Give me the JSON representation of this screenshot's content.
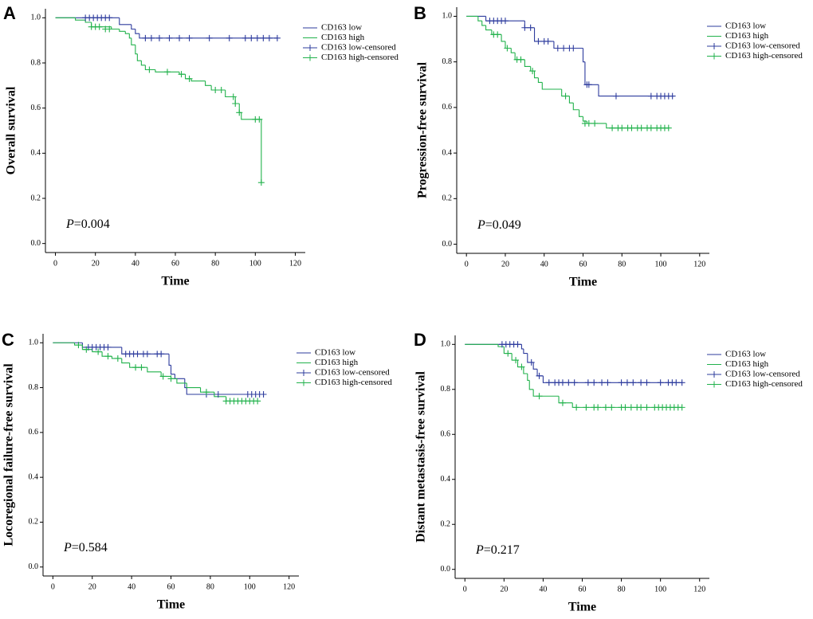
{
  "chart_data": [
    {
      "type": "step",
      "panel_label": "A",
      "ylabel": "Overall survival",
      "xlabel": "Time",
      "annotation_italic": "P",
      "annotation": "=0.004",
      "xlim": [
        -5,
        125
      ],
      "ylim": [
        -0.04,
        1.04
      ],
      "xticks": [
        0,
        20,
        40,
        60,
        80,
        100,
        120
      ],
      "yticks": [
        {
          "value": 0,
          "label": "0.0"
        },
        0.2,
        0.4,
        0.6,
        0.8,
        {
          "value": 1,
          "label": "1.0"
        }
      ],
      "series": [
        {
          "name": "CD163 low",
          "color": "#2e3c9e",
          "x": [
            0,
            32,
            38,
            40,
            42,
            111
          ],
          "values": [
            1,
            0.97,
            0.95,
            0.93,
            0.91,
            0.91
          ]
        },
        {
          "name": "CD163 high",
          "color": "#22b24c",
          "x": [
            0,
            10,
            15,
            18,
            28,
            32,
            35,
            37,
            38,
            40,
            41,
            43,
            45,
            50,
            62,
            65,
            68,
            75,
            78,
            85,
            90,
            92,
            93,
            103
          ],
          "values": [
            1,
            0.99,
            0.98,
            0.96,
            0.95,
            0.94,
            0.93,
            0.91,
            0.88,
            0.84,
            0.81,
            0.79,
            0.77,
            0.76,
            0.75,
            0.73,
            0.72,
            0.7,
            0.68,
            0.65,
            0.62,
            0.58,
            0.55,
            0.27
          ]
        },
        {
          "name": "CD163 low-censored",
          "color": "#2e3c9e",
          "marker": "+",
          "x": [
            15,
            17,
            19,
            21,
            23,
            25,
            27,
            45,
            48,
            52,
            57,
            62,
            67,
            77,
            87,
            95,
            98,
            101,
            104,
            107,
            111
          ],
          "values": [
            1,
            1,
            1,
            1,
            1,
            1,
            1,
            0.91,
            0.91,
            0.91,
            0.91,
            0.91,
            0.91,
            0.91,
            0.91,
            0.91,
            0.91,
            0.91,
            0.91,
            0.91,
            0.91
          ]
        },
        {
          "name": "CD163 high-censored",
          "color": "#22b24c",
          "marker": "+",
          "x": [
            18,
            20,
            22,
            25,
            27,
            47,
            56,
            63,
            67,
            80,
            83,
            89,
            90,
            92,
            100,
            102,
            103
          ],
          "values": [
            0.96,
            0.96,
            0.96,
            0.95,
            0.95,
            0.77,
            0.76,
            0.75,
            0.73,
            0.68,
            0.68,
            0.65,
            0.62,
            0.58,
            0.55,
            0.55,
            0.27
          ]
        }
      ]
    },
    {
      "type": "step",
      "panel_label": "B",
      "ylabel": "Progression-free survival",
      "xlabel": "Time",
      "annotation_italic": "P",
      "annotation": "=0.049",
      "xlim": [
        -5,
        125
      ],
      "ylim": [
        -0.04,
        1.04
      ],
      "xticks": [
        0,
        20,
        40,
        60,
        80,
        100,
        120
      ],
      "yticks": [
        {
          "value": 0,
          "label": "0.0"
        },
        0.2,
        0.4,
        0.6,
        0.8,
        {
          "value": 1,
          "label": "1.0"
        }
      ],
      "series": [
        {
          "name": "CD163 low",
          "color": "#2e3c9e",
          "x": [
            0,
            10,
            30,
            35,
            45,
            60,
            61,
            68,
            107
          ],
          "values": [
            1,
            0.98,
            0.95,
            0.89,
            0.86,
            0.8,
            0.7,
            0.65,
            0.65
          ]
        },
        {
          "name": "CD163 high",
          "color": "#22b24c",
          "x": [
            0,
            6,
            8,
            10,
            13,
            18,
            20,
            23,
            25,
            30,
            33,
            35,
            37,
            39,
            49,
            53,
            55,
            58,
            60,
            62,
            72,
            104
          ],
          "values": [
            1,
            0.98,
            0.96,
            0.94,
            0.92,
            0.89,
            0.86,
            0.84,
            0.81,
            0.78,
            0.76,
            0.73,
            0.71,
            0.68,
            0.65,
            0.62,
            0.59,
            0.56,
            0.54,
            0.53,
            0.51,
            0.51
          ]
        },
        {
          "name": "CD163 low-censored",
          "color": "#2e3c9e",
          "marker": "+",
          "x": [
            12,
            14,
            16,
            18,
            20,
            30,
            33,
            37,
            40,
            42,
            47,
            50,
            53,
            55,
            62,
            63,
            77,
            95,
            98,
            100,
            102,
            104,
            106
          ],
          "values": [
            0.98,
            0.98,
            0.98,
            0.98,
            0.98,
            0.95,
            0.95,
            0.89,
            0.89,
            0.89,
            0.86,
            0.86,
            0.86,
            0.86,
            0.7,
            0.7,
            0.65,
            0.65,
            0.65,
            0.65,
            0.65,
            0.65,
            0.65
          ]
        },
        {
          "name": "CD163 high-censored",
          "color": "#22b24c",
          "marker": "+",
          "x": [
            14,
            16,
            21,
            26,
            28,
            34,
            51,
            61,
            63,
            66,
            75,
            78,
            80,
            83,
            85,
            88,
            90,
            93,
            95,
            98,
            100,
            102,
            104
          ],
          "values": [
            0.92,
            0.92,
            0.86,
            0.81,
            0.81,
            0.76,
            0.65,
            0.53,
            0.53,
            0.53,
            0.51,
            0.51,
            0.51,
            0.51,
            0.51,
            0.51,
            0.51,
            0.51,
            0.51,
            0.51,
            0.51,
            0.51,
            0.51
          ]
        }
      ]
    },
    {
      "type": "step",
      "panel_label": "C",
      "ylabel": "Locoregional failure-free survival",
      "xlabel": "Time",
      "annotation_italic": "P",
      "annotation": "=0.584",
      "xlim": [
        -5,
        125
      ],
      "ylim": [
        -0.04,
        1.04
      ],
      "xticks": [
        0,
        20,
        40,
        60,
        80,
        100,
        120
      ],
      "yticks": [
        {
          "value": 0,
          "label": "0.0"
        },
        0.2,
        0.4,
        0.6,
        0.8,
        {
          "value": 1,
          "label": "1.0"
        }
      ],
      "series": [
        {
          "name": "CD163 low",
          "color": "#2e3c9e",
          "x": [
            0,
            15,
            35,
            59,
            60,
            62,
            67,
            68,
            107
          ],
          "values": [
            1,
            0.98,
            0.95,
            0.9,
            0.86,
            0.84,
            0.8,
            0.77,
            0.77
          ]
        },
        {
          "name": "CD163 high",
          "color": "#22b24c",
          "x": [
            0,
            11,
            15,
            20,
            25,
            30,
            35,
            39,
            48,
            55,
            60,
            63,
            68,
            75,
            82,
            88,
            104
          ],
          "values": [
            1,
            0.99,
            0.97,
            0.96,
            0.94,
            0.93,
            0.91,
            0.89,
            0.87,
            0.85,
            0.84,
            0.82,
            0.8,
            0.78,
            0.76,
            0.74,
            0.74
          ]
        },
        {
          "name": "CD163 low-censored",
          "color": "#2e3c9e",
          "marker": "+",
          "x": [
            18,
            20,
            22,
            24,
            26,
            28,
            37,
            39,
            41,
            43,
            46,
            48,
            53,
            55,
            78,
            84,
            99,
            101,
            103,
            105,
            107
          ],
          "values": [
            0.98,
            0.98,
            0.98,
            0.98,
            0.98,
            0.98,
            0.95,
            0.95,
            0.95,
            0.95,
            0.95,
            0.95,
            0.95,
            0.95,
            0.77,
            0.77,
            0.77,
            0.77,
            0.77,
            0.77,
            0.77
          ]
        },
        {
          "name": "CD163 high-censored",
          "color": "#22b24c",
          "marker": "+",
          "x": [
            13,
            17,
            23,
            28,
            33,
            42,
            45,
            56,
            60,
            78,
            88,
            90,
            92,
            94,
            96,
            98,
            100,
            102,
            104
          ],
          "values": [
            0.99,
            0.97,
            0.96,
            0.94,
            0.93,
            0.89,
            0.89,
            0.85,
            0.84,
            0.78,
            0.74,
            0.74,
            0.74,
            0.74,
            0.74,
            0.74,
            0.74,
            0.74,
            0.74
          ]
        }
      ]
    },
    {
      "type": "step",
      "panel_label": "D",
      "ylabel": "Distant metastasis-free survival",
      "xlabel": "Time",
      "annotation_italic": "P",
      "annotation": "=0.217",
      "xlim": [
        -5,
        125
      ],
      "ylim": [
        -0.04,
        1.04
      ],
      "xticks": [
        0,
        20,
        40,
        60,
        80,
        100,
        120
      ],
      "yticks": [
        {
          "value": 0,
          "label": "0.0"
        },
        0.2,
        0.4,
        0.6,
        0.8,
        {
          "value": 1,
          "label": "1.0"
        }
      ],
      "series": [
        {
          "name": "CD163 low",
          "color": "#2e3c9e",
          "x": [
            0,
            29,
            30,
            32,
            35,
            37,
            40,
            111
          ],
          "values": [
            1,
            0.98,
            0.96,
            0.92,
            0.89,
            0.86,
            0.83,
            0.83
          ]
        },
        {
          "name": "CD163 high",
          "color": "#22b24c",
          "x": [
            0,
            17,
            20,
            24,
            27,
            30,
            32,
            33,
            35,
            48,
            55,
            111
          ],
          "values": [
            1,
            0.99,
            0.96,
            0.93,
            0.9,
            0.87,
            0.84,
            0.8,
            0.77,
            0.74,
            0.72,
            0.72
          ]
        },
        {
          "name": "CD163 low-censored",
          "color": "#2e3c9e",
          "marker": "+",
          "x": [
            19,
            21,
            23,
            25,
            27,
            34,
            38,
            43,
            46,
            48,
            50,
            53,
            56,
            63,
            66,
            70,
            73,
            80,
            83,
            86,
            90,
            93,
            100,
            104,
            106,
            108,
            111
          ],
          "values": [
            1,
            1,
            1,
            1,
            1,
            0.92,
            0.86,
            0.83,
            0.83,
            0.83,
            0.83,
            0.83,
            0.83,
            0.83,
            0.83,
            0.83,
            0.83,
            0.83,
            0.83,
            0.83,
            0.83,
            0.83,
            0.83,
            0.83,
            0.83,
            0.83,
            0.83
          ]
        },
        {
          "name": "CD163 high-censored",
          "color": "#22b24c",
          "marker": "+",
          "x": [
            22,
            26,
            29,
            38,
            50,
            57,
            62,
            66,
            68,
            72,
            75,
            80,
            82,
            85,
            88,
            90,
            93,
            97,
            99,
            101,
            103,
            105,
            107,
            109,
            111
          ],
          "values": [
            0.96,
            0.93,
            0.9,
            0.77,
            0.74,
            0.72,
            0.72,
            0.72,
            0.72,
            0.72,
            0.72,
            0.72,
            0.72,
            0.72,
            0.72,
            0.72,
            0.72,
            0.72,
            0.72,
            0.72,
            0.72,
            0.72,
            0.72,
            0.72,
            0.72
          ]
        }
      ]
    }
  ]
}
